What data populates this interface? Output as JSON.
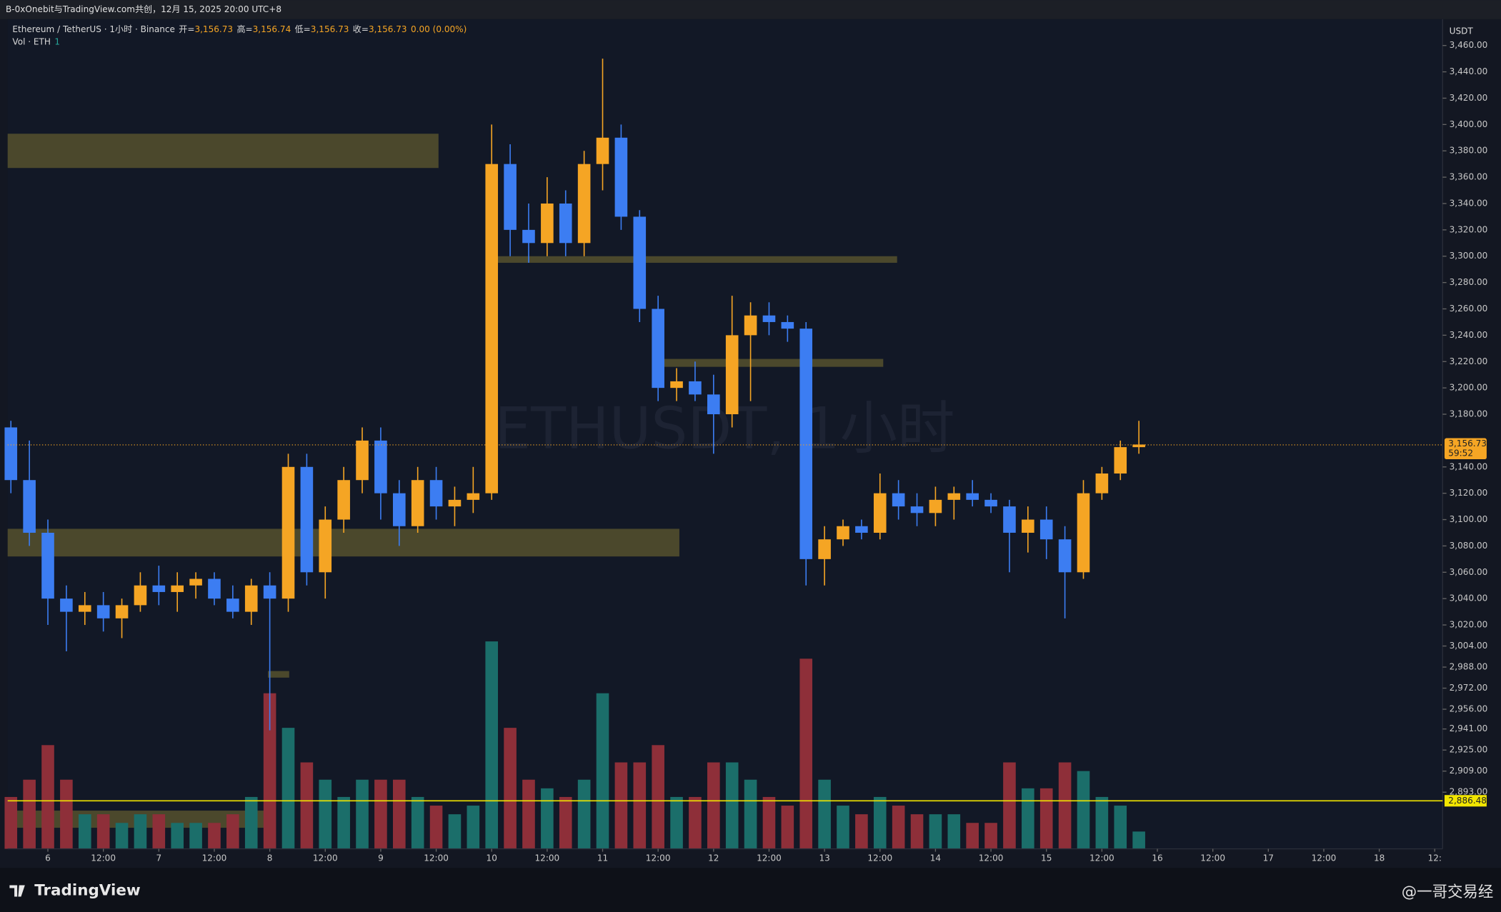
{
  "header": {
    "text": "B-0xOnebit与TradingView.com共创，12月 15, 2025 20:00 UTC+8"
  },
  "footer": {
    "brand": "TradingView",
    "credit": "@一哥交易经"
  },
  "chart_data": {
    "type": "candlestick",
    "legend": {
      "symbol": "Ethereum / TetherUS · 1小时 · Binance",
      "items": [
        {
          "label": "开=",
          "value": "3,156.73"
        },
        {
          "label": "高=",
          "value": "3,156.74"
        },
        {
          "label": "低=",
          "value": "3,156.73"
        },
        {
          "label": "收=",
          "value": "3,156.73"
        }
      ],
      "change": "0.00 (0.00%)",
      "volume_label": "Vol · ETH",
      "volume_value": "1"
    },
    "watermark": "ETHUSDT, 1小时",
    "currency": "USDT",
    "up_color": "#f5a524",
    "down_color": "#3c7df2",
    "volume_up_color": "#1b6e6a",
    "volume_down_color": "#8e2f39",
    "zone_color": "#56512e",
    "x": [
      -8,
      -4,
      0,
      4,
      8,
      12,
      16,
      20,
      24,
      28,
      32,
      36,
      40,
      44,
      48,
      52,
      56,
      60,
      64,
      68,
      72,
      76,
      80,
      84,
      88,
      92,
      96,
      100,
      104,
      108,
      112,
      116,
      120,
      124,
      128,
      132,
      136,
      140,
      144,
      148,
      152,
      156,
      160,
      164,
      168,
      172,
      176,
      180,
      184,
      188,
      192,
      196,
      200,
      204,
      208,
      212,
      216,
      220,
      224,
      228,
      232,
      236
    ],
    "open": [
      3170,
      3130,
      3090,
      3040,
      3030,
      3035,
      3025,
      3035,
      3050,
      3045,
      3050,
      3055,
      3040,
      3030,
      3050,
      3040,
      3140,
      3060,
      3100,
      3130,
      3160,
      3120,
      3095,
      3130,
      3110,
      3115,
      3120,
      3370,
      3320,
      3310,
      3340,
      3310,
      3370,
      3390,
      3330,
      3260,
      3200,
      3205,
      3195,
      3180,
      3240,
      3255,
      3250,
      3245,
      3070,
      3085,
      3095,
      3090,
      3120,
      3110,
      3105,
      3115,
      3120,
      3115,
      3110,
      3090,
      3100,
      3085,
      3060,
      3120,
      3135,
      3155
    ],
    "high": [
      3175,
      3160,
      3100,
      3050,
      3045,
      3045,
      3040,
      3060,
      3065,
      3060,
      3060,
      3060,
      3050,
      3055,
      3060,
      3150,
      3150,
      3110,
      3140,
      3170,
      3170,
      3130,
      3140,
      3140,
      3125,
      3140,
      3400,
      3385,
      3340,
      3360,
      3350,
      3380,
      3450,
      3400,
      3335,
      3270,
      3215,
      3220,
      3210,
      3270,
      3265,
      3265,
      3255,
      3250,
      3095,
      3100,
      3100,
      3135,
      3130,
      3120,
      3125,
      3125,
      3130,
      3120,
      3115,
      3110,
      3110,
      3095,
      3130,
      3140,
      3160,
      3175
    ],
    "low": [
      3120,
      3080,
      3020,
      3000,
      3020,
      3015,
      3010,
      3030,
      3035,
      3030,
      3040,
      3035,
      3025,
      3020,
      2940,
      3030,
      3050,
      3040,
      3090,
      3120,
      3100,
      3080,
      3090,
      3100,
      3095,
      3105,
      3115,
      3300,
      3295,
      3300,
      3300,
      3300,
      3350,
      3320,
      3250,
      3190,
      3190,
      3190,
      3150,
      3170,
      3190,
      3240,
      3235,
      3050,
      3050,
      3080,
      3085,
      3085,
      3100,
      3095,
      3095,
      3100,
      3110,
      3105,
      3060,
      3075,
      3070,
      3025,
      3055,
      3115,
      3130,
      3150
    ],
    "close": [
      3130,
      3090,
      3040,
      3030,
      3035,
      3025,
      3035,
      3050,
      3045,
      3050,
      3055,
      3040,
      3030,
      3050,
      3040,
      3140,
      3060,
      3100,
      3130,
      3160,
      3120,
      3095,
      3130,
      3110,
      3115,
      3120,
      3370,
      3320,
      3310,
      3340,
      3310,
      3370,
      3390,
      3330,
      3260,
      3200,
      3205,
      3195,
      3180,
      3240,
      3255,
      3250,
      3245,
      3070,
      3085,
      3095,
      3090,
      3120,
      3110,
      3105,
      3115,
      3120,
      3115,
      3110,
      3090,
      3100,
      3085,
      3060,
      3120,
      3135,
      3155,
      3157
    ],
    "volume": [
      300,
      400,
      600,
      400,
      200,
      200,
      150,
      200,
      200,
      150,
      150,
      150,
      200,
      300,
      900,
      700,
      500,
      400,
      300,
      400,
      400,
      400,
      300,
      250,
      200,
      250,
      1200,
      700,
      400,
      350,
      300,
      400,
      900,
      500,
      500,
      600,
      300,
      300,
      500,
      500,
      400,
      300,
      250,
      1100,
      400,
      250,
      200,
      300,
      250,
      200,
      200,
      200,
      150,
      150,
      500,
      350,
      350,
      500,
      450,
      300,
      250,
      100
    ],
    "volume_lim": [
      0,
      4800
    ],
    "zones": [
      [
        -8.7,
        84.5,
        3367,
        3393
      ],
      [
        96.5,
        183.7,
        3295,
        3300
      ],
      [
        131.5,
        180.7,
        3216,
        3222
      ],
      [
        -8.7,
        136.6,
        3072,
        3093
      ],
      [
        47.6,
        52.2,
        2980,
        2985
      ],
      [
        -8.7,
        48,
        2866,
        2879
      ]
    ],
    "last_price": 3156.73,
    "last_price_label": "3,156.73",
    "countdown": "59:52",
    "alert_line": 2886.48,
    "alert_label": "2,886.48",
    "alert_color": "#f2e600",
    "xlim": [
      -8.7,
      301.7
    ],
    "xticks": [
      {
        "value": 0,
        "label": "6"
      },
      {
        "value": 12,
        "label": "12:00"
      },
      {
        "value": 24,
        "label": "7"
      },
      {
        "value": 36,
        "label": "12:00"
      },
      {
        "value": 48,
        "label": "8"
      },
      {
        "value": 60,
        "label": "12:00"
      },
      {
        "value": 72,
        "label": "9"
      },
      {
        "value": 84,
        "label": "12:00"
      },
      {
        "value": 96,
        "label": "10"
      },
      {
        "value": 108,
        "label": "12:00"
      },
      {
        "value": 120,
        "label": "11"
      },
      {
        "value": 132,
        "label": "12:00"
      },
      {
        "value": 144,
        "label": "12"
      },
      {
        "value": 156,
        "label": "12:00"
      },
      {
        "value": 168,
        "label": "13"
      },
      {
        "value": 180,
        "label": "12:00"
      },
      {
        "value": 192,
        "label": "14"
      },
      {
        "value": 204,
        "label": "12:00"
      },
      {
        "value": 216,
        "label": "15"
      },
      {
        "value": 228,
        "label": "12:00"
      },
      {
        "value": 240,
        "label": "16"
      },
      {
        "value": 252,
        "label": "12:00"
      },
      {
        "value": 264,
        "label": "17"
      },
      {
        "value": 276,
        "label": "12:00"
      },
      {
        "value": 288,
        "label": "18"
      },
      {
        "value": 300,
        "label": "12:"
      }
    ],
    "ylim": [
      2850,
      3480
    ],
    "yticks": [
      {
        "value": 3460,
        "label": "3,460.00"
      },
      {
        "value": 3440,
        "label": "3,440.00"
      },
      {
        "value": 3420,
        "label": "3,420.00"
      },
      {
        "value": 3400,
        "label": "3,400.00"
      },
      {
        "value": 3380,
        "label": "3,380.00"
      },
      {
        "value": 3360,
        "label": "3,360.00"
      },
      {
        "value": 3340,
        "label": "3,340.00"
      },
      {
        "value": 3320,
        "label": "3,320.00"
      },
      {
        "value": 3300,
        "label": "3,300.00"
      },
      {
        "value": 3280,
        "label": "3,280.00"
      },
      {
        "value": 3260,
        "label": "3,260.00"
      },
      {
        "value": 3240,
        "label": "3,240.00"
      },
      {
        "value": 3220,
        "label": "3,220.00"
      },
      {
        "value": 3200,
        "label": "3,200.00"
      },
      {
        "value": 3180,
        "label": "3,180.00"
      },
      {
        "value": 3140,
        "label": "3,140.00"
      },
      {
        "value": 3120,
        "label": "3,120.00"
      },
      {
        "value": 3100,
        "label": "3,100.00"
      },
      {
        "value": 3080,
        "label": "3,080.00"
      },
      {
        "value": 3060,
        "label": "3,060.00"
      },
      {
        "value": 3040,
        "label": "3,040.00"
      },
      {
        "value": 3020,
        "label": "3,020.00"
      },
      {
        "value": 3004,
        "label": "3,004.00"
      },
      {
        "value": 2988,
        "label": "2,988.00"
      },
      {
        "value": 2972,
        "label": "2,972.00"
      },
      {
        "value": 2956,
        "label": "2,956.00"
      },
      {
        "value": 2941,
        "label": "2,941.00"
      },
      {
        "value": 2925,
        "label": "2,925.00"
      },
      {
        "value": 2909,
        "label": "2,909.00"
      },
      {
        "value": 2893,
        "label": "2,893.00"
      }
    ]
  }
}
